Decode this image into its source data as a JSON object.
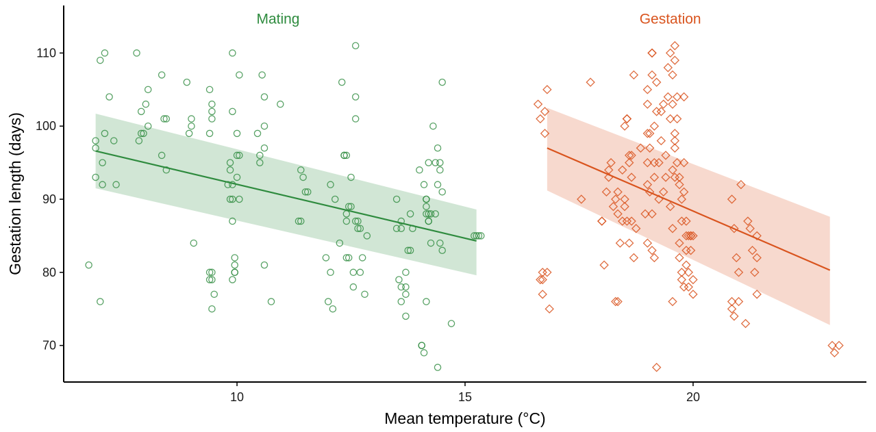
{
  "chart_data": {
    "type": "scatter",
    "xlabel": "Mean temperature (°C)",
    "ylabel": "Gestation length (days)",
    "xlim": [
      6.2,
      23.8
    ],
    "ylim": [
      65,
      116.5
    ],
    "x_ticks": [
      10,
      15,
      20
    ],
    "y_ticks": [
      70,
      80,
      90,
      100,
      110
    ],
    "grid": false,
    "series": [
      {
        "name": "Mating",
        "color": "#2e8b3e",
        "marker": "circle",
        "points": [
          [
            6.75,
            81
          ],
          [
            6.9,
            93
          ],
          [
            6.9,
            97
          ],
          [
            6.9,
            98
          ],
          [
            7.0,
            109
          ],
          [
            7.0,
            76
          ],
          [
            7.05,
            92
          ],
          [
            7.05,
            95
          ],
          [
            7.1,
            99
          ],
          [
            7.1,
            110
          ],
          [
            7.2,
            104
          ],
          [
            7.3,
            98
          ],
          [
            7.35,
            92
          ],
          [
            7.8,
            110
          ],
          [
            7.85,
            98
          ],
          [
            7.9,
            102
          ],
          [
            7.9,
            99
          ],
          [
            7.95,
            99
          ],
          [
            8.0,
            103
          ],
          [
            8.05,
            100
          ],
          [
            8.05,
            105
          ],
          [
            8.35,
            107
          ],
          [
            8.35,
            96
          ],
          [
            8.4,
            101
          ],
          [
            8.45,
            101
          ],
          [
            8.45,
            94
          ],
          [
            8.9,
            106
          ],
          [
            8.95,
            99
          ],
          [
            9.0,
            101
          ],
          [
            9.0,
            100
          ],
          [
            9.05,
            84
          ],
          [
            9.4,
            105
          ],
          [
            9.4,
            99
          ],
          [
            9.45,
            103
          ],
          [
            9.45,
            102
          ],
          [
            9.45,
            101
          ],
          [
            9.4,
            80
          ],
          [
            9.4,
            79
          ],
          [
            9.45,
            80
          ],
          [
            9.45,
            79
          ],
          [
            9.45,
            75
          ],
          [
            9.5,
            77
          ],
          [
            9.8,
            92
          ],
          [
            9.85,
            95
          ],
          [
            9.85,
            94
          ],
          [
            9.85,
            90
          ],
          [
            9.9,
            90
          ],
          [
            9.9,
            92
          ],
          [
            9.9,
            110
          ],
          [
            9.9,
            102
          ],
          [
            9.9,
            87
          ],
          [
            9.9,
            79
          ],
          [
            9.95,
            80
          ],
          [
            9.95,
            81
          ],
          [
            9.95,
            82
          ],
          [
            9.95,
            80
          ],
          [
            10.0,
            99
          ],
          [
            10.0,
            93
          ],
          [
            10.0,
            96
          ],
          [
            10.05,
            96
          ],
          [
            10.05,
            107
          ],
          [
            10.05,
            90
          ],
          [
            10.45,
            99
          ],
          [
            10.5,
            95
          ],
          [
            10.5,
            96
          ],
          [
            10.55,
            107
          ],
          [
            10.6,
            104
          ],
          [
            10.6,
            97
          ],
          [
            10.6,
            100
          ],
          [
            10.6,
            81
          ],
          [
            10.75,
            76
          ],
          [
            10.95,
            103
          ],
          [
            11.35,
            87
          ],
          [
            11.4,
            87
          ],
          [
            11.4,
            94
          ],
          [
            11.45,
            93
          ],
          [
            11.5,
            91
          ],
          [
            11.55,
            91
          ],
          [
            11.95,
            82
          ],
          [
            12.0,
            76
          ],
          [
            12.05,
            80
          ],
          [
            12.05,
            92
          ],
          [
            12.1,
            75
          ],
          [
            12.15,
            90
          ],
          [
            12.25,
            84
          ],
          [
            12.3,
            106
          ],
          [
            12.35,
            96
          ],
          [
            12.35,
            96
          ],
          [
            12.4,
            96
          ],
          [
            12.4,
            88
          ],
          [
            12.4,
            87
          ],
          [
            12.4,
            82
          ],
          [
            12.45,
            82
          ],
          [
            12.45,
            89
          ],
          [
            12.5,
            93
          ],
          [
            12.5,
            89
          ],
          [
            12.55,
            80
          ],
          [
            12.55,
            78
          ],
          [
            12.6,
            111
          ],
          [
            12.6,
            104
          ],
          [
            12.6,
            101
          ],
          [
            12.6,
            87
          ],
          [
            12.65,
            86
          ],
          [
            12.65,
            87
          ],
          [
            12.7,
            86
          ],
          [
            12.7,
            80
          ],
          [
            12.75,
            82
          ],
          [
            12.8,
            77
          ],
          [
            12.85,
            85
          ],
          [
            13.5,
            90
          ],
          [
            13.5,
            86
          ],
          [
            13.55,
            79
          ],
          [
            13.6,
            87
          ],
          [
            13.6,
            76
          ],
          [
            13.6,
            78
          ],
          [
            13.6,
            86
          ],
          [
            13.7,
            78
          ],
          [
            13.7,
            74
          ],
          [
            13.7,
            77
          ],
          [
            13.7,
            80
          ],
          [
            13.75,
            83
          ],
          [
            13.8,
            83
          ],
          [
            13.8,
            88
          ],
          [
            13.85,
            86
          ],
          [
            14.0,
            94
          ],
          [
            14.05,
            70
          ],
          [
            14.05,
            70
          ],
          [
            14.1,
            69
          ],
          [
            14.1,
            92
          ],
          [
            14.15,
            90
          ],
          [
            14.15,
            89
          ],
          [
            14.15,
            88
          ],
          [
            14.15,
            76
          ],
          [
            14.15,
            90
          ],
          [
            14.2,
            95
          ],
          [
            14.2,
            87
          ],
          [
            14.2,
            87
          ],
          [
            14.2,
            88
          ],
          [
            14.25,
            84
          ],
          [
            14.25,
            88
          ],
          [
            14.3,
            100
          ],
          [
            14.35,
            95
          ],
          [
            14.35,
            88
          ],
          [
            14.4,
            67
          ],
          [
            14.4,
            97
          ],
          [
            14.4,
            92
          ],
          [
            14.45,
            95
          ],
          [
            14.45,
            84
          ],
          [
            14.45,
            94
          ],
          [
            14.5,
            83
          ],
          [
            14.5,
            106
          ],
          [
            14.5,
            91
          ],
          [
            14.7,
            73
          ],
          [
            15.2,
            85
          ],
          [
            15.25,
            85
          ],
          [
            15.3,
            85
          ],
          [
            15.35,
            85
          ]
        ]
      },
      {
        "name": "Gestation",
        "color": "#d9541e",
        "marker": "diamond",
        "points": [
          [
            16.6,
            103
          ],
          [
            16.65,
            101
          ],
          [
            16.65,
            79
          ],
          [
            16.7,
            80
          ],
          [
            16.7,
            77
          ],
          [
            16.7,
            79
          ],
          [
            16.75,
            102
          ],
          [
            16.75,
            99
          ],
          [
            16.8,
            105
          ],
          [
            16.8,
            80
          ],
          [
            16.85,
            75
          ],
          [
            17.55,
            90
          ],
          [
            17.75,
            106
          ],
          [
            18.0,
            87
          ],
          [
            18.0,
            87
          ],
          [
            18.05,
            81
          ],
          [
            18.1,
            91
          ],
          [
            18.15,
            93
          ],
          [
            18.15,
            94
          ],
          [
            18.2,
            95
          ],
          [
            18.25,
            89
          ],
          [
            18.3,
            76
          ],
          [
            18.3,
            90
          ],
          [
            18.35,
            76
          ],
          [
            18.35,
            88
          ],
          [
            18.35,
            91
          ],
          [
            18.4,
            84
          ],
          [
            18.45,
            94
          ],
          [
            18.45,
            87
          ],
          [
            18.5,
            90
          ],
          [
            18.5,
            100
          ],
          [
            18.5,
            89
          ],
          [
            18.55,
            101
          ],
          [
            18.55,
            101
          ],
          [
            18.55,
            87
          ],
          [
            18.6,
            95
          ],
          [
            18.6,
            84
          ],
          [
            18.6,
            96
          ],
          [
            18.65,
            96
          ],
          [
            18.65,
            93
          ],
          [
            18.65,
            87
          ],
          [
            18.7,
            82
          ],
          [
            18.7,
            107
          ],
          [
            18.75,
            86
          ],
          [
            18.85,
            97
          ],
          [
            18.95,
            88
          ],
          [
            19.0,
            103
          ],
          [
            19.0,
            105
          ],
          [
            19.0,
            99
          ],
          [
            19.0,
            95
          ],
          [
            19.0,
            92
          ],
          [
            19.0,
            84
          ],
          [
            19.05,
            91
          ],
          [
            19.05,
            97
          ],
          [
            19.05,
            99
          ],
          [
            19.1,
            110
          ],
          [
            19.1,
            110
          ],
          [
            19.1,
            88
          ],
          [
            19.1,
            83
          ],
          [
            19.1,
            107
          ],
          [
            19.15,
            82
          ],
          [
            19.15,
            93
          ],
          [
            19.15,
            95
          ],
          [
            19.15,
            100
          ],
          [
            19.2,
            67
          ],
          [
            19.2,
            102
          ],
          [
            19.2,
            106
          ],
          [
            19.25,
            95
          ],
          [
            19.25,
            90
          ],
          [
            19.3,
            102
          ],
          [
            19.3,
            98
          ],
          [
            19.35,
            103
          ],
          [
            19.35,
            91
          ],
          [
            19.4,
            96
          ],
          [
            19.4,
            93
          ],
          [
            19.45,
            104
          ],
          [
            19.45,
            108
          ],
          [
            19.5,
            110
          ],
          [
            19.5,
            101
          ],
          [
            19.5,
            89
          ],
          [
            19.55,
            94
          ],
          [
            19.55,
            103
          ],
          [
            19.55,
            107
          ],
          [
            19.55,
            76
          ],
          [
            19.55,
            86
          ],
          [
            19.6,
            109
          ],
          [
            19.6,
            111
          ],
          [
            19.6,
            99
          ],
          [
            19.6,
            93
          ],
          [
            19.6,
            97
          ],
          [
            19.6,
            98
          ],
          [
            19.65,
            101
          ],
          [
            19.65,
            104
          ],
          [
            19.65,
            95
          ],
          [
            19.7,
            92
          ],
          [
            19.7,
            84
          ],
          [
            19.7,
            82
          ],
          [
            19.7,
            93
          ],
          [
            19.75,
            80
          ],
          [
            19.75,
            90
          ],
          [
            19.75,
            87
          ],
          [
            19.75,
            79
          ],
          [
            19.8,
            104
          ],
          [
            19.8,
            95
          ],
          [
            19.8,
            91
          ],
          [
            19.8,
            78
          ],
          [
            19.85,
            81
          ],
          [
            19.85,
            83
          ],
          [
            19.85,
            85
          ],
          [
            19.85,
            87
          ],
          [
            19.9,
            85
          ],
          [
            19.9,
            80
          ],
          [
            19.9,
            78
          ],
          [
            19.95,
            85
          ],
          [
            19.95,
            85
          ],
          [
            19.95,
            83
          ],
          [
            20.0,
            85
          ],
          [
            20.0,
            77
          ],
          [
            20.0,
            79
          ],
          [
            20.85,
            76
          ],
          [
            20.85,
            75
          ],
          [
            20.85,
            90
          ],
          [
            20.9,
            86
          ],
          [
            20.9,
            74
          ],
          [
            20.95,
            82
          ],
          [
            21.0,
            76
          ],
          [
            21.0,
            80
          ],
          [
            21.05,
            92
          ],
          [
            21.15,
            73
          ],
          [
            21.2,
            87
          ],
          [
            21.25,
            86
          ],
          [
            21.3,
            83
          ],
          [
            21.35,
            80
          ],
          [
            21.4,
            77
          ],
          [
            21.4,
            85
          ],
          [
            21.4,
            82
          ],
          [
            23.05,
            70
          ],
          [
            23.1,
            69
          ],
          [
            23.2,
            70
          ]
        ]
      }
    ],
    "fits": [
      {
        "series": "Mating",
        "x0": 6.9,
        "x1": 15.25,
        "y0": 96.6,
        "y1": 84.3,
        "ci_lo0": 91.5,
        "ci_lo1": 79.6,
        "ci_hi0": 101.7,
        "ci_hi1": 88.6
      },
      {
        "series": "Gestation",
        "x0": 16.8,
        "x1": 23.0,
        "y0": 97.0,
        "y1": 80.3,
        "ci_lo0": 91.2,
        "ci_lo1": 72.8,
        "ci_hi0": 102.5,
        "ci_hi1": 87.6
      }
    ],
    "annotations": [
      {
        "text": "Mating",
        "series": "Mating",
        "x": 10.9,
        "y": 114.0
      },
      {
        "text": "Gestation",
        "series": "Gestation",
        "x": 19.5,
        "y": 114.0
      }
    ]
  }
}
